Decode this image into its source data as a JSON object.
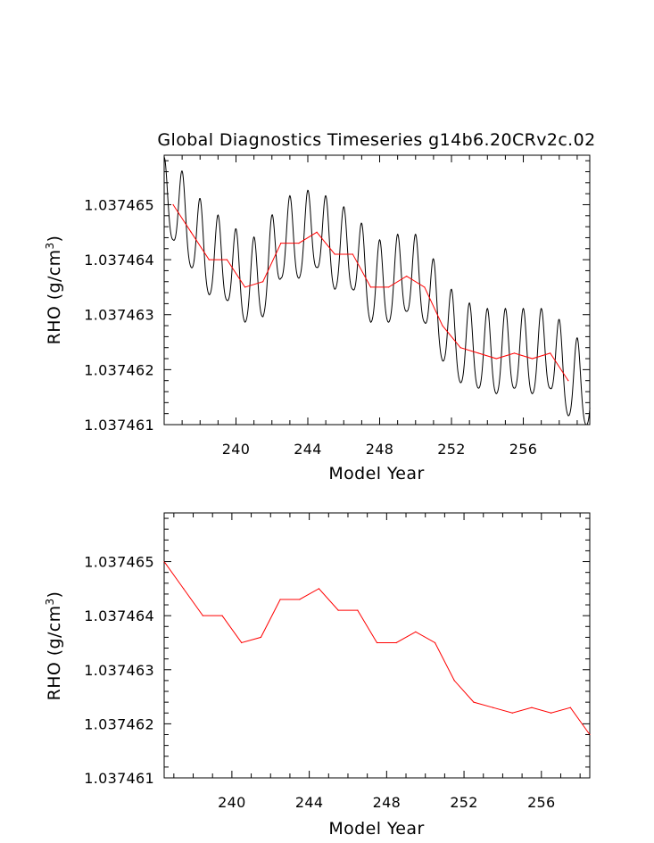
{
  "colors": {
    "monthly": "#000000",
    "annual": "#ff0000",
    "axes": "#000000",
    "background": "#ffffff"
  },
  "chart_data": [
    {
      "type": "line",
      "title": "Global Diagnostics Timeseries g14b6.20CRv2c.02",
      "xlabel": "Model Year",
      "ylabel": "RHO (g/cm",
      "ylabel_sup": "3",
      "ylabel_close": ")",
      "xlim": [
        236.0,
        259.7
      ],
      "ylim": [
        1.037461,
        1.0374659
      ],
      "xticks": [
        240,
        244,
        248,
        252,
        256
      ],
      "xtick_labels": [
        "240",
        "244",
        "248",
        "252",
        "256"
      ],
      "yticks": [
        1.037461,
        1.037462,
        1.037463,
        1.037464,
        1.037465
      ],
      "ytick_labels": [
        "1.037461",
        "1.037462",
        "1.037463",
        "1.037464",
        "1.037465"
      ],
      "series": [
        {
          "name": "monthly",
          "color": "#000000",
          "style": "seasonal",
          "x_start": 236.0,
          "x_end": 259.7,
          "amplitude": 7.5e-07,
          "period": 1,
          "base_x": [
            236.0,
            236.5,
            237.5,
            238.5,
            239.5,
            240.5,
            241.5,
            242.5,
            243.5,
            244.5,
            245.5,
            246.5,
            247.5,
            248.5,
            249.5,
            250.5,
            251.5,
            252.5,
            253.5,
            254.5,
            255.5,
            256.5,
            257.5,
            258.5,
            259.7
          ],
          "base_y": [
            1.037465,
            1.037465,
            1.0374645,
            1.037464,
            1.0374639,
            1.0374635,
            1.0374636,
            1.0374643,
            1.0374643,
            1.0374645,
            1.0374641,
            1.0374641,
            1.0374635,
            1.0374635,
            1.0374637,
            1.0374635,
            1.0374628,
            1.0374624,
            1.0374623,
            1.0374622,
            1.0374623,
            1.0374622,
            1.0374623,
            1.0374618,
            1.0374616
          ]
        },
        {
          "name": "annual",
          "color": "#ff0000",
          "style": "line",
          "x": [
            236.5,
            237.5,
            238.5,
            239.5,
            240.5,
            241.5,
            242.5,
            243.5,
            244.5,
            245.5,
            246.5,
            247.5,
            248.5,
            249.5,
            250.5,
            251.5,
            252.5,
            253.5,
            254.5,
            255.5,
            256.5,
            257.5,
            258.5
          ],
          "y": [
            1.037465,
            1.0374645,
            1.037464,
            1.037464,
            1.0374635,
            1.0374636,
            1.0374643,
            1.0374643,
            1.0374645,
            1.0374641,
            1.0374641,
            1.0374635,
            1.0374635,
            1.0374637,
            1.0374635,
            1.0374628,
            1.0374624,
            1.0374623,
            1.0374622,
            1.0374623,
            1.0374622,
            1.0374623,
            1.0374618
          ]
        }
      ]
    },
    {
      "type": "line",
      "title": "",
      "xlabel": "Model Year",
      "ylabel": "RHO (g/cm",
      "ylabel_sup": "3",
      "ylabel_close": ")",
      "xlim": [
        236.5,
        258.5
      ],
      "ylim": [
        1.037461,
        1.0374659
      ],
      "xticks": [
        240,
        244,
        248,
        252,
        256
      ],
      "xtick_labels": [
        "240",
        "244",
        "248",
        "252",
        "256"
      ],
      "yticks": [
        1.037461,
        1.037462,
        1.037463,
        1.037464,
        1.037465
      ],
      "ytick_labels": [
        "1.037461",
        "1.037462",
        "1.037463",
        "1.037464",
        "1.037465"
      ],
      "series": [
        {
          "name": "annual",
          "color": "#ff0000",
          "style": "line",
          "x": [
            236.5,
            237.5,
            238.5,
            239.5,
            240.5,
            241.5,
            242.5,
            243.5,
            244.5,
            245.5,
            246.5,
            247.5,
            248.5,
            249.5,
            250.5,
            251.5,
            252.5,
            253.5,
            254.5,
            255.5,
            256.5,
            257.5,
            258.5
          ],
          "y": [
            1.037465,
            1.0374645,
            1.037464,
            1.037464,
            1.0374635,
            1.0374636,
            1.0374643,
            1.0374643,
            1.0374645,
            1.0374641,
            1.0374641,
            1.0374635,
            1.0374635,
            1.0374637,
            1.0374635,
            1.0374628,
            1.0374624,
            1.0374623,
            1.0374622,
            1.0374623,
            1.0374622,
            1.0374623,
            1.0374618
          ]
        }
      ]
    }
  ]
}
